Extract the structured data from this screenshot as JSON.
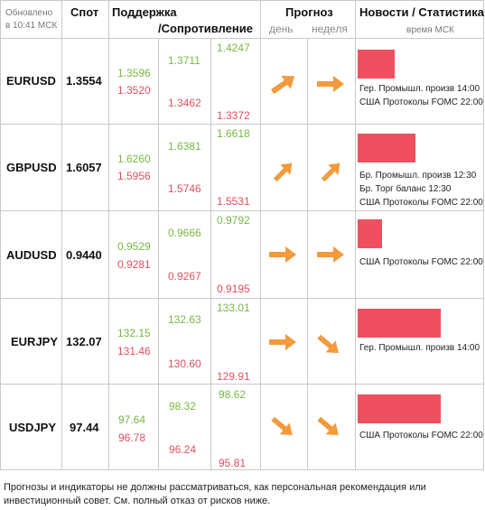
{
  "header": {
    "updated": "Обновлено",
    "time": "в 10:41 МСК",
    "spot": "Спот",
    "support": "Поддержка",
    "resistance": "/Сопротивление",
    "forecast": "Прогноз",
    "day": "день",
    "week": "неделя",
    "news": "Новости / Статистика",
    "msk": "время МСК"
  },
  "rows": [
    {
      "pair": "EURUSD",
      "spot": "1.3554",
      "s1": "1.3596",
      "s2": "1.3520",
      "m1": "1.3711",
      "m2": "1.3462",
      "r1": "1.4247",
      "r2": "1.3372",
      "day": "up",
      "week": "right",
      "bar_pct": 0.3,
      "news": [
        "Гер. Промышл. произв 14:00",
        "США Протоколы FOMC 22:00"
      ]
    },
    {
      "pair": "GBPUSD",
      "spot": "1.6057",
      "s1": "1.6260",
      "s2": "1.5956",
      "m1": "1.6381",
      "m2": "1.5746",
      "r1": "1.6618",
      "r2": "1.5531",
      "day": "up",
      "week": "up",
      "bar_pct": 0.47,
      "news": [
        "Бр. Промышл. произв 12:30",
        "Бр. Торг баланс 12:30",
        "США Протоколы FOMC 22:00"
      ]
    },
    {
      "pair": "AUDUSD",
      "spot": "0.9440",
      "s1": "0.9529",
      "s2": "0.9281",
      "m1": "0.9666",
      "m2": "0.9267",
      "r1": "0.9792",
      "r2": "0.9195",
      "day": "right",
      "week": "right",
      "bar_pct": 0.2,
      "news": [
        "США Протоколы FOMC 22:00"
      ]
    },
    {
      "pair": "EURJPY",
      "spot": "132.07",
      "s1": "132.15",
      "s2": "131.46",
      "m1": "132.63",
      "m2": "130.60",
      "r1": "133.01",
      "r2": "129.91",
      "day": "right",
      "week": "down",
      "bar_pct": 0.67,
      "news": [
        "Гер. Промышл. произв 14:00"
      ]
    },
    {
      "pair": "USDJPY",
      "spot": "97.44",
      "s1": "97.64",
      "s2": "96.78",
      "m1": "98.32",
      "m2": "96.24",
      "r1": "98.62",
      "r2": "95.81",
      "day": "down",
      "week": "down",
      "bar_pct": 0.67,
      "news": [
        "США Протоколы FOMC 22:00"
      ]
    }
  ],
  "disclaimer": "Прогнозы и индикаторы не должны рассматриваться, как персональная рекомендация или инвестиционный совет. См. полный отказ от рисков ниже.",
  "colors": {
    "green": "#78b845",
    "red": "#e05060",
    "arrow": "#f39a3c",
    "bar": "#ee5060"
  }
}
